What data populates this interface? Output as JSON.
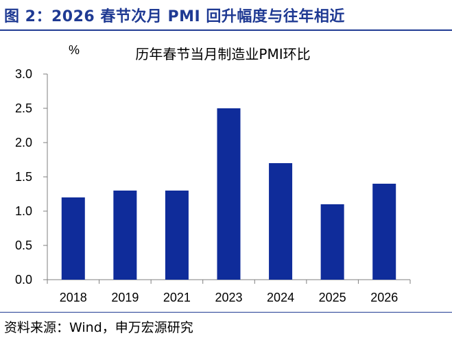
{
  "figure": {
    "title": "图 2：2026 春节次月 PMI 回升幅度与往年相近",
    "source": "资料来源：Wind，申万宏源研究"
  },
  "colors": {
    "bar": "#0f2c9a",
    "accent": "#1f3a93",
    "axis": "#7f7f7f"
  },
  "chart_data": {
    "type": "bar",
    "title": "历年春节当月制造业PMI环比",
    "ylabel": "%",
    "xlabel": "",
    "categories": [
      "2018",
      "2019",
      "2021",
      "2023",
      "2024",
      "2025",
      "2026"
    ],
    "series": [
      {
        "values": [
          1.2,
          1.3,
          1.3,
          2.5,
          1.7,
          1.1,
          1.4
        ]
      }
    ],
    "ylim": [
      0,
      3.0
    ],
    "yticks": [
      "0.0",
      "0.5",
      "1.0",
      "1.5",
      "2.0",
      "2.5",
      "3.0"
    ],
    "grid": false,
    "legend": "none"
  }
}
